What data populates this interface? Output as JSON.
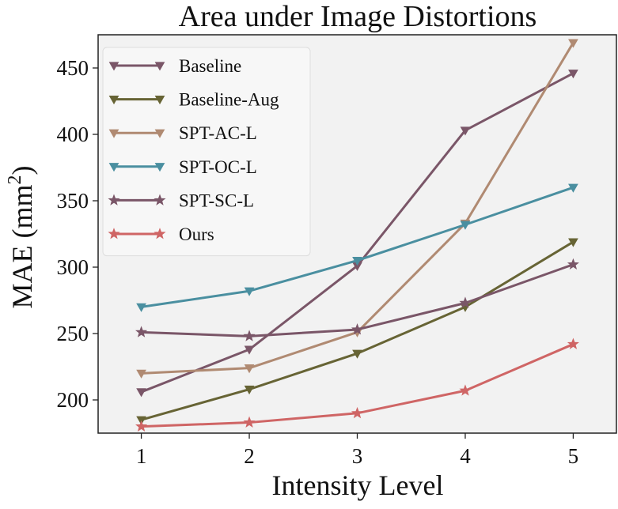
{
  "chart_data": {
    "type": "line",
    "title": "Area under Image Distortions",
    "xlabel": "Intensity Level",
    "ylabel_main": "MAE (mm",
    "ylabel_sup": "2",
    "ylabel_close": ")",
    "x": [
      1,
      2,
      3,
      4,
      5
    ],
    "xlim": [
      0.6,
      5.4
    ],
    "ylim": [
      175,
      475
    ],
    "xticks": [
      1,
      2,
      3,
      4,
      5
    ],
    "yticks": [
      200,
      250,
      300,
      350,
      400,
      450
    ],
    "grid": false,
    "legend_position": "top-left",
    "series": [
      {
        "name": "Baseline",
        "marker": "triangle-down",
        "color": "#7a5668",
        "values": [
          206,
          238,
          301,
          403,
          446
        ]
      },
      {
        "name": "Baseline-Aug",
        "marker": "triangle-down",
        "color": "#676435",
        "values": [
          185,
          208,
          235,
          270,
          319
        ]
      },
      {
        "name": "SPT-AC-L",
        "marker": "triangle-down",
        "color": "#b08a72",
        "values": [
          220,
          224,
          251,
          333,
          469
        ]
      },
      {
        "name": "SPT-OC-L",
        "marker": "triangle-down",
        "color": "#4a8fa0",
        "values": [
          270,
          282,
          305,
          332,
          360
        ]
      },
      {
        "name": "SPT-SC-L",
        "marker": "star",
        "color": "#7a5668",
        "values": [
          251,
          248,
          253,
          273,
          302
        ]
      },
      {
        "name": "Ours",
        "marker": "star",
        "color": "#cf6565",
        "values": [
          180,
          183,
          190,
          207,
          242
        ]
      }
    ]
  }
}
